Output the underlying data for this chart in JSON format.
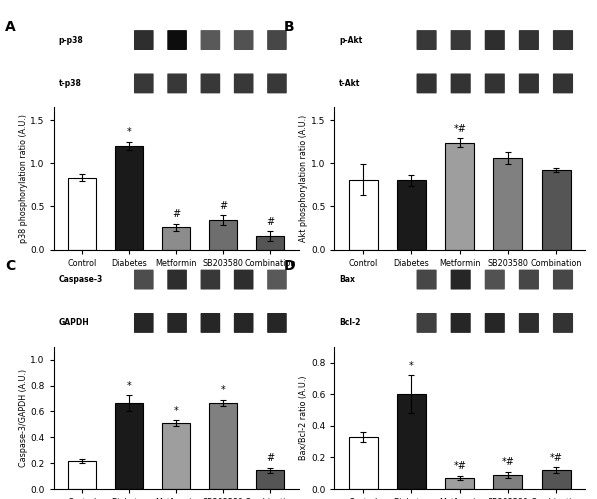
{
  "categories": [
    "Control",
    "Diabetes",
    "Metformin",
    "SB203580",
    "Combination"
  ],
  "panel_A": {
    "label": "A",
    "blot1_label": "p-p38",
    "blot2_label": "t-p38",
    "ylabel": "p38 phosphorylation ratio (A.U.)",
    "values": [
      0.83,
      1.2,
      0.26,
      0.34,
      0.155
    ],
    "errors": [
      0.04,
      0.05,
      0.04,
      0.06,
      0.06
    ],
    "ylim": [
      0,
      1.65
    ],
    "yticks": [
      0.0,
      0.5,
      1.0,
      1.5
    ],
    "bar_colors": [
      "#ffffff",
      "#1a1a1a",
      "#8c8c8c",
      "#6e6e6e",
      "#555555"
    ],
    "annotations": [
      "",
      "*",
      "#",
      "#",
      "#"
    ]
  },
  "panel_B": {
    "label": "B",
    "blot1_label": "p-Akt",
    "blot2_label": "t-Akt",
    "ylabel": "Akt phosphorylation ratio (A.U.)",
    "values": [
      0.81,
      0.8,
      1.24,
      1.06,
      0.92
    ],
    "errors": [
      0.18,
      0.06,
      0.05,
      0.07,
      0.02
    ],
    "ylim": [
      0,
      1.65
    ],
    "yticks": [
      0.0,
      0.5,
      1.0,
      1.5
    ],
    "bar_colors": [
      "#ffffff",
      "#1a1a1a",
      "#9e9e9e",
      "#808080",
      "#555555"
    ],
    "annotations": [
      "",
      "",
      "*#",
      "",
      ""
    ]
  },
  "panel_C": {
    "label": "C",
    "blot1_label": "Caspase-3",
    "blot2_label": "GAPDH",
    "ylabel": "Caspase-3/GAPDH (A.U.)",
    "values": [
      0.215,
      0.665,
      0.51,
      0.665,
      0.145
    ],
    "errors": [
      0.015,
      0.06,
      0.025,
      0.025,
      0.02
    ],
    "ylim": [
      0,
      1.1
    ],
    "yticks": [
      0.0,
      0.2,
      0.4,
      0.6,
      0.8,
      1.0
    ],
    "bar_colors": [
      "#ffffff",
      "#1a1a1a",
      "#9e9e9e",
      "#808080",
      "#555555"
    ],
    "annotations": [
      "",
      "*",
      "*",
      "*",
      "#"
    ]
  },
  "panel_D": {
    "label": "D",
    "blot1_label": "Bax",
    "blot2_label": "Bcl-2",
    "ylabel": "Bax/Bcl-2 ratio (A.U.)",
    "values": [
      0.33,
      0.6,
      0.07,
      0.09,
      0.12
    ],
    "errors": [
      0.03,
      0.12,
      0.015,
      0.02,
      0.02
    ],
    "ylim": [
      0,
      0.9
    ],
    "yticks": [
      0.0,
      0.2,
      0.4,
      0.6,
      0.8
    ],
    "bar_colors": [
      "#ffffff",
      "#1a1a1a",
      "#9e9e9e",
      "#808080",
      "#555555"
    ],
    "annotations": [
      "",
      "*",
      "*#",
      "*#",
      "*#"
    ]
  },
  "bg_color": "#ffffff",
  "edge_color": "#000000",
  "blot_band_intensities": {
    "A_row1": [
      0.18,
      0.05,
      0.35,
      0.32,
      0.28
    ],
    "A_row2": [
      0.22,
      0.22,
      0.22,
      0.22,
      0.22
    ],
    "B_row1": [
      0.22,
      0.22,
      0.18,
      0.2,
      0.2
    ],
    "B_row2": [
      0.2,
      0.2,
      0.2,
      0.2,
      0.2
    ],
    "C_row1": [
      0.3,
      0.18,
      0.22,
      0.18,
      0.35
    ],
    "C_row2": [
      0.15,
      0.15,
      0.15,
      0.15,
      0.15
    ],
    "D_row1": [
      0.28,
      0.15,
      0.32,
      0.28,
      0.28
    ],
    "D_row2": [
      0.25,
      0.15,
      0.15,
      0.18,
      0.2
    ]
  }
}
